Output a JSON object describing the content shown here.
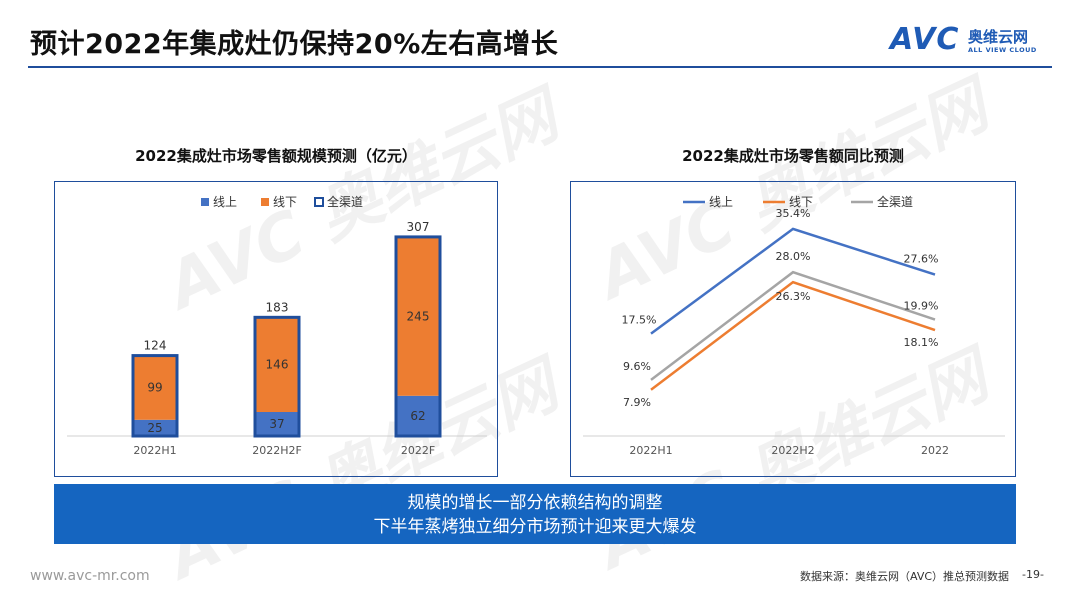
{
  "page_title": "预计2022年集成灶仍保持20%左右高增长",
  "logo": {
    "mark": "AVC",
    "cn": "奥维云网",
    "en": "ALL VIEW CLOUD"
  },
  "watermark_text": "AVC 奥维云网",
  "colors": {
    "online": "#4472c4",
    "offline": "#ed7d31",
    "all": "#a5a5a5",
    "accent": "#1f4e9c",
    "banner": "#1565c0"
  },
  "chart_data": [
    {
      "type": "bar",
      "title": "2022集成灶市场零售额规模预测（亿元）",
      "legend": [
        "线上",
        "线下",
        "全渠道"
      ],
      "categories": [
        "2022H1",
        "2022H2F",
        "2022F"
      ],
      "series": [
        {
          "name": "线上",
          "values": [
            25,
            37,
            62
          ]
        },
        {
          "name": "线下",
          "values": [
            99,
            146,
            245
          ]
        },
        {
          "name": "全渠道",
          "values": [
            124,
            183,
            307
          ]
        }
      ],
      "ylim": [
        0,
        330
      ]
    },
    {
      "type": "line",
      "title": "2022集成灶市场零售额同比预测",
      "legend": [
        "线上",
        "线下",
        "全渠道"
      ],
      "categories": [
        "2022H1",
        "2022H2",
        "2022"
      ],
      "series": [
        {
          "name": "线上",
          "values": [
            17.5,
            35.4,
            27.6
          ],
          "labels": [
            "17.5%",
            "35.4%",
            "27.6%"
          ]
        },
        {
          "name": "线下",
          "values": [
            7.9,
            26.3,
            18.1
          ],
          "labels": [
            "7.9%",
            "26.3%",
            "18.1%"
          ]
        },
        {
          "name": "全渠道",
          "values": [
            9.6,
            28.0,
            19.9
          ],
          "labels": [
            "9.6%",
            "28.0%",
            "19.9%"
          ]
        }
      ],
      "ylim": [
        0,
        40
      ]
    }
  ],
  "banner": {
    "line1": "规模的增长一部分依赖结构的调整",
    "line2": "下半年蒸烤独立细分市场预计迎来更大爆发"
  },
  "footer": {
    "website": "www.avc-mr.com",
    "source": "数据来源：奥维云网（AVC）推总预测数据",
    "page": "-19-"
  }
}
